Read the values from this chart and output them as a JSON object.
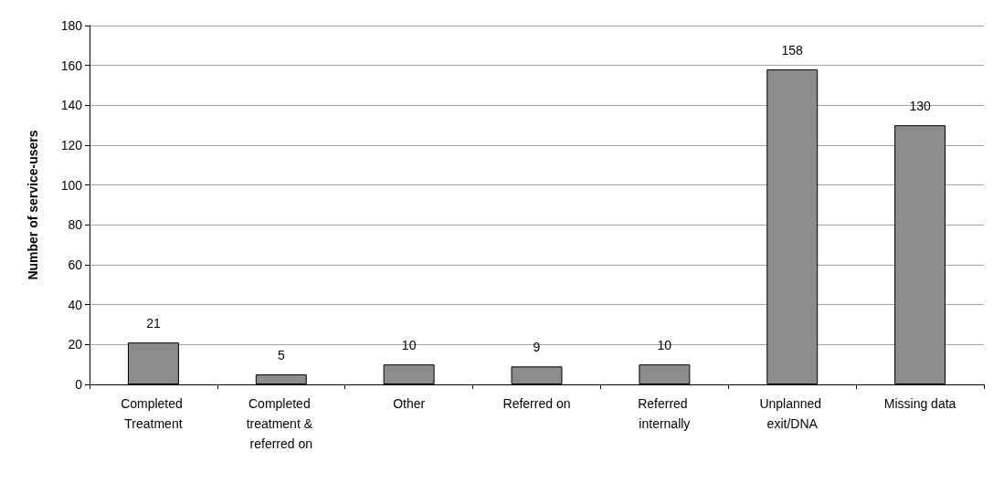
{
  "chart_data": {
    "type": "bar",
    "ylabel": "Number of service-users",
    "categories": [
      "Completed Treatment",
      "Completed treatment & referred on",
      "Other",
      "Referred on",
      "Referred internally",
      "Unplanned exit/DNA",
      "Missing data"
    ],
    "values": [
      21,
      5,
      10,
      9,
      10,
      158,
      130
    ],
    "color": "#8c8c8c",
    "ylim": [
      0,
      180
    ],
    "yticks": [
      0,
      20,
      40,
      60,
      80,
      100,
      120,
      140,
      160,
      180
    ],
    "grid": "y",
    "data_labels": true
  }
}
